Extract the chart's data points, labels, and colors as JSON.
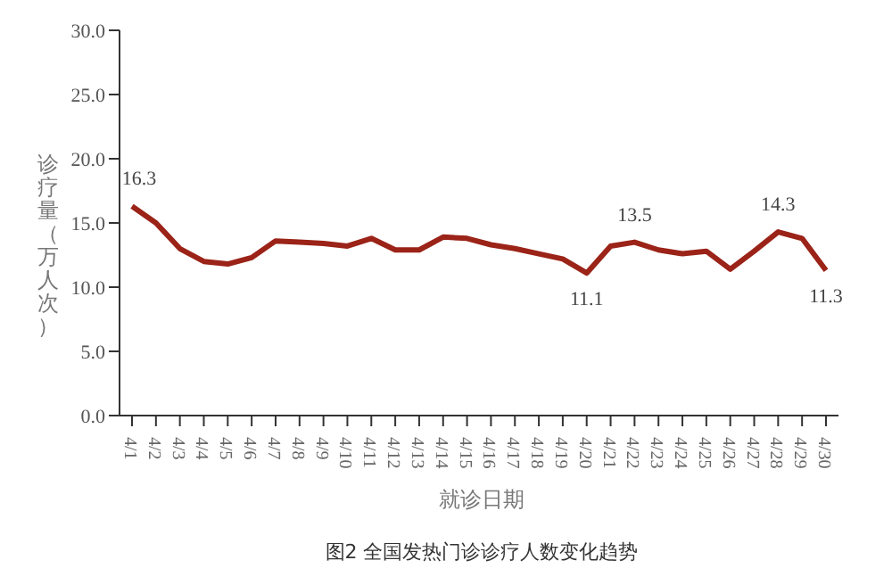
{
  "chart_data": {
    "type": "line",
    "xlabel": "就诊日期",
    "ylabel": "诊疗量（万人次）",
    "annotations": [
      "图2 全国发热门诊诊疗人数变化趋势"
    ],
    "categories": [
      "4/1",
      "4/2",
      "4/3",
      "4/4",
      "4/5",
      "4/6",
      "4/7",
      "4/8",
      "4/9",
      "4/10",
      "4/11",
      "4/12",
      "4/13",
      "4/14",
      "4/15",
      "4/16",
      "4/17",
      "4/18",
      "4/19",
      "4/20",
      "4/21",
      "4/22",
      "4/23",
      "4/24",
      "4/25",
      "4/26",
      "4/27",
      "4/28",
      "4/29",
      "4/30"
    ],
    "series": [
      {
        "color": "#9b2318",
        "values": [
          16.3,
          15.0,
          13.0,
          12.0,
          11.8,
          12.3,
          13.6,
          13.5,
          13.4,
          13.2,
          13.8,
          12.9,
          12.9,
          13.9,
          13.8,
          13.3,
          13.0,
          12.6,
          12.2,
          11.1,
          13.2,
          13.5,
          12.9,
          12.6,
          12.8,
          11.4,
          12.8,
          14.3,
          13.8,
          11.3
        ],
        "value_labels": [
          "16.3",
          null,
          null,
          null,
          null,
          null,
          null,
          null,
          null,
          null,
          null,
          null,
          null,
          null,
          null,
          null,
          null,
          null,
          null,
          "11.1",
          null,
          "13.5",
          null,
          null,
          null,
          null,
          null,
          "14.3",
          null,
          "11.3"
        ]
      }
    ],
    "ylim": [
      0,
      30
    ],
    "yticks": [
      {
        "value": 0,
        "label": "0.0"
      },
      {
        "value": 5,
        "label": "5.0"
      },
      {
        "value": 10,
        "label": "10.0"
      },
      {
        "value": 15,
        "label": "15.0"
      },
      {
        "value": 20,
        "label": "20.0"
      },
      {
        "value": 25,
        "label": "25.0"
      },
      {
        "value": 30,
        "label": "30.0"
      }
    ],
    "grid": false,
    "legend": false,
    "marker": "none",
    "line_style": "solid"
  }
}
